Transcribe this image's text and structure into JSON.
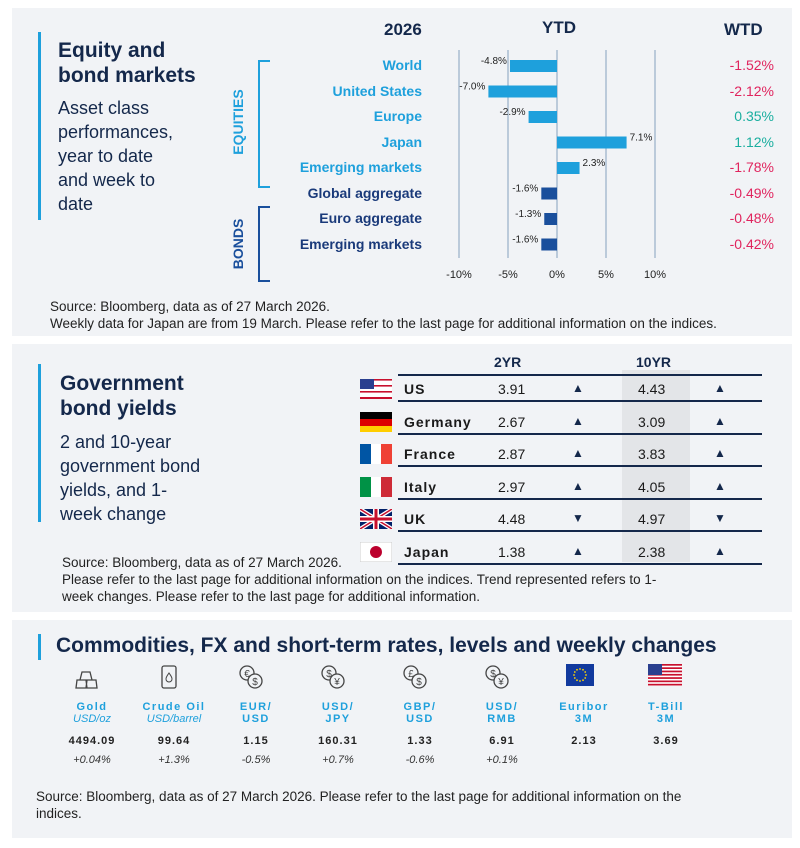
{
  "equity": {
    "title_1": "Equity and",
    "title_2": "bond markets",
    "subtitle": [
      "Asset class",
      "performances,",
      "year to date",
      "and week to",
      "date"
    ],
    "col_year": "2026",
    "col_ytd": "YTD",
    "col_wtd": "WTD",
    "group_equities": "EQUITIES",
    "group_bonds": "BONDS",
    "source_1": "Source: Bloomberg, data as of 27 March 2026.",
    "source_2": "Weekly data for Japan are from 19 March. Please refer to the last page for additional information on the indices."
  },
  "chart_data": {
    "type": "bar",
    "orientation": "horizontal",
    "xlim": [
      -10,
      10
    ],
    "x_ticks": [
      "-10%",
      "-5%",
      "0%",
      "5%",
      "10%"
    ],
    "grid": true,
    "categories": [
      "World",
      "United States",
      "Europe",
      "Japan",
      "Emerging  markets",
      "Global aggregate",
      "Euro aggregate",
      "Emerging  markets"
    ],
    "groups": [
      "equities",
      "equities",
      "equities",
      "equities",
      "equities",
      "bonds",
      "bonds",
      "bonds"
    ],
    "ytd": [
      -4.8,
      -7.0,
      -2.9,
      7.1,
      2.3,
      -1.6,
      -1.3,
      -1.6
    ],
    "ytd_labels": [
      "-4.8%",
      "-7.0%",
      "-2.9%",
      "7.1%",
      "2.3%",
      "-1.6%",
      "-1.3%",
      "-1.6%"
    ],
    "wtd": [
      "-1.52%",
      "-2.12%",
      "0.35%",
      "1.12%",
      "-1.78%",
      "-0.49%",
      "-0.48%",
      "-0.42%"
    ],
    "colors": {
      "equities": "#1ea0dc",
      "bonds": "#1a4f9c",
      "negative": "#e0245e",
      "positive": "#1aae9f",
      "equity_label": "#1ea0dc",
      "bond_label": "#1a3a7a"
    }
  },
  "bonds": {
    "title_1": "Government",
    "title_2": "bond yields",
    "subtitle": [
      "2 and 10-year",
      "government bond",
      "yields, and 1-",
      "week change"
    ],
    "col_2yr": "2YR",
    "col_10yr": "10YR",
    "rows": [
      {
        "country": "US",
        "flag": "us-flag",
        "y2": "3.91",
        "t2": "▲",
        "y10": "4.43",
        "t10": "▲"
      },
      {
        "country": "Germany",
        "flag": "germany-flag",
        "y2": "2.67",
        "t2": "▲",
        "y10": "3.09",
        "t10": "▲"
      },
      {
        "country": "France",
        "flag": "france-flag",
        "y2": "2.87",
        "t2": "▲",
        "y10": "3.83",
        "t10": "▲"
      },
      {
        "country": "Italy",
        "flag": "italy-flag",
        "y2": "2.97",
        "t2": "▲",
        "y10": "4.05",
        "t10": "▲"
      },
      {
        "country": "UK",
        "flag": "uk-flag",
        "y2": "4.48",
        "t2": "▼",
        "y10": "4.97",
        "t10": "▼"
      },
      {
        "country": "Japan",
        "flag": "japan-flag",
        "y2": "1.38",
        "t2": "▲",
        "y10": "2.38",
        "t10": "▲"
      }
    ],
    "source_1": "Source: Bloomberg, data as of 27  March 2026.",
    "source_2": "Please refer to the last page for additional information on the indices. Trend represented refers to 1-",
    "source_3": "week changes. Please refer to the last page for additional information."
  },
  "commodities": {
    "title": "Commodities, FX and short-term rates, levels and weekly changes",
    "items": [
      {
        "name": "Gold",
        "unit": "USD/oz",
        "value": "4494.09",
        "change": "+0.04%",
        "icon": "gold-bars-icon"
      },
      {
        "name": "Crude Oil",
        "unit": "USD/barrel",
        "value": "99.64",
        "change": "+1.3%",
        "icon": "oil-barrel-icon"
      },
      {
        "name": "EUR/",
        "unit": "USD",
        "value": "1.15",
        "change": "-0.5%",
        "icon": "euro-dollar-exchange-icon"
      },
      {
        "name": "USD/",
        "unit": "JPY",
        "value": "160.31",
        "change": "+0.7%",
        "icon": "dollar-yen-exchange-icon"
      },
      {
        "name": "GBP/",
        "unit": "USD",
        "value": "1.33",
        "change": "-0.6%",
        "icon": "pound-dollar-exchange-icon"
      },
      {
        "name": "USD/",
        "unit": "RMB",
        "value": "6.91",
        "change": "+0.1%",
        "icon": "dollar-yuan-exchange-icon"
      },
      {
        "name": "Euribor",
        "unit": "3M",
        "value": "2.13",
        "change": "",
        "icon": "eu-flag-icon"
      },
      {
        "name": "T-Bill",
        "unit": "3M",
        "value": "3.69",
        "change": "",
        "icon": "us-flag-icon"
      }
    ],
    "source_1": "Source: Bloomberg, data as of 27 March 2026. Please refer to the last page for additional information on the",
    "source_2": "indices."
  }
}
